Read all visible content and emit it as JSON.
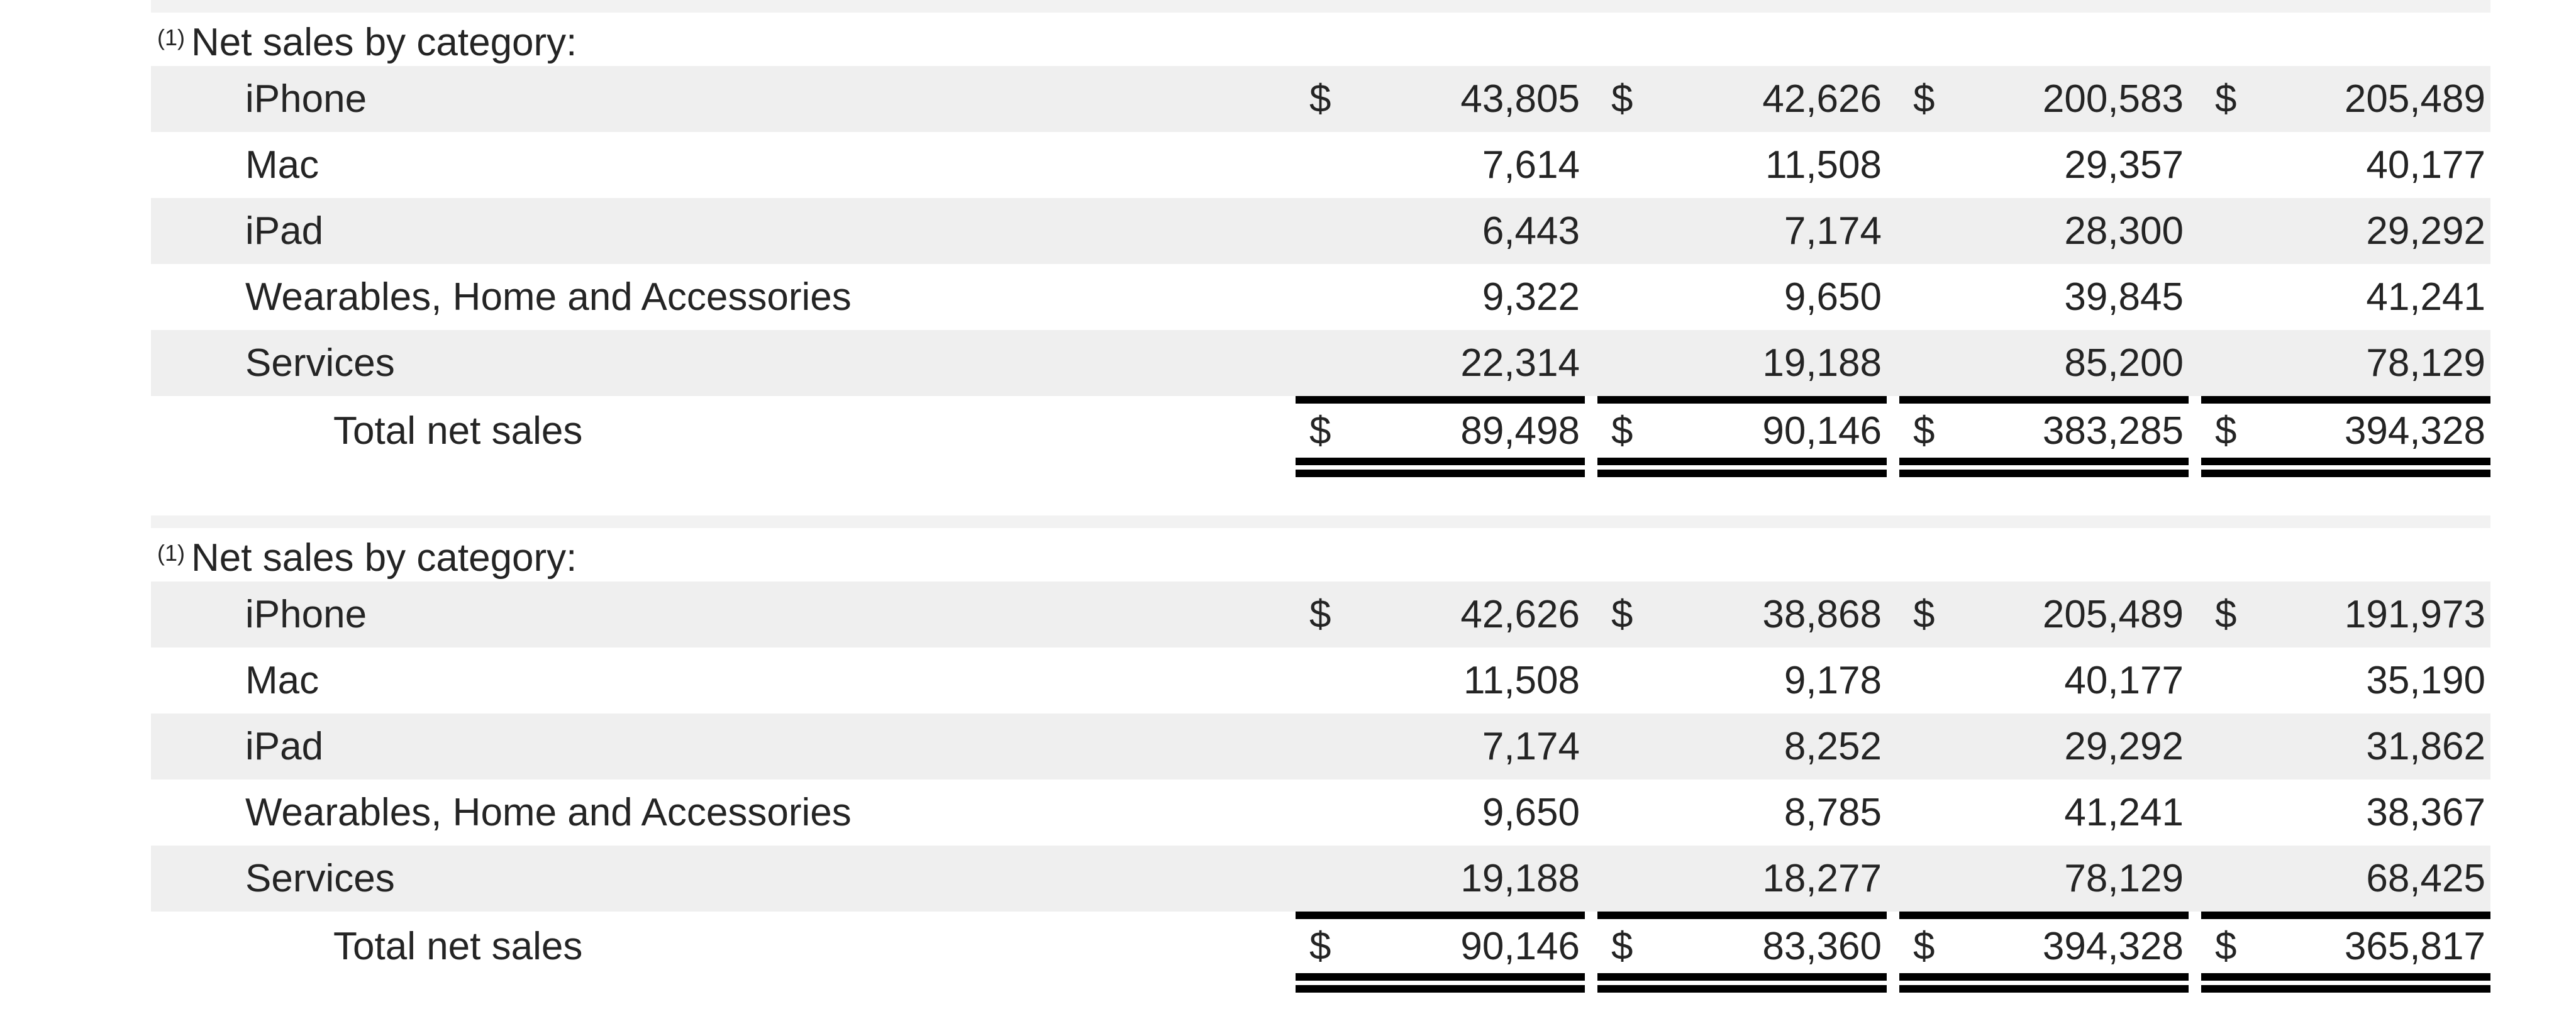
{
  "document": {
    "background": "#ffffff",
    "text_color": "#242424",
    "row_shade_color": "#efefef",
    "separator_band_color": "#f2f2f2",
    "rule_color": "#000000"
  },
  "tables": [
    {
      "footnote_marker": "(1)",
      "title": "Net sales by category:",
      "rows": [
        {
          "label": "iPhone",
          "currency": "$",
          "values": [
            "43,805",
            "42,626",
            "200,583",
            "205,489"
          ]
        },
        {
          "label": "Mac",
          "values": [
            "7,614",
            "11,508",
            "29,357",
            "40,177"
          ]
        },
        {
          "label": "iPad",
          "values": [
            "6,443",
            "7,174",
            "28,300",
            "29,292"
          ]
        },
        {
          "label": "Wearables, Home and Accessories",
          "values": [
            "9,322",
            "9,650",
            "39,845",
            "41,241"
          ]
        },
        {
          "label": "Services",
          "values": [
            "22,314",
            "19,188",
            "85,200",
            "78,129"
          ]
        },
        {
          "label": "Total net sales",
          "currency": "$",
          "values": [
            "89,498",
            "90,146",
            "383,285",
            "394,328"
          ]
        }
      ]
    },
    {
      "footnote_marker": "(1)",
      "title": "Net sales by category:",
      "rows": [
        {
          "label": "iPhone",
          "currency": "$",
          "values": [
            "42,626",
            "38,868",
            "205,489",
            "191,973"
          ]
        },
        {
          "label": "Mac",
          "values": [
            "11,508",
            "9,178",
            "40,177",
            "35,190"
          ]
        },
        {
          "label": "iPad",
          "values": [
            "7,174",
            "8,252",
            "29,292",
            "31,862"
          ]
        },
        {
          "label": "Wearables, Home and Accessories",
          "values": [
            "9,650",
            "8,785",
            "41,241",
            "38,367"
          ]
        },
        {
          "label": "Services",
          "values": [
            "19,188",
            "18,277",
            "78,129",
            "68,425"
          ]
        },
        {
          "label": "Total net sales",
          "currency": "$",
          "values": [
            "90,146",
            "83,360",
            "394,328",
            "365,817"
          ]
        }
      ]
    }
  ]
}
